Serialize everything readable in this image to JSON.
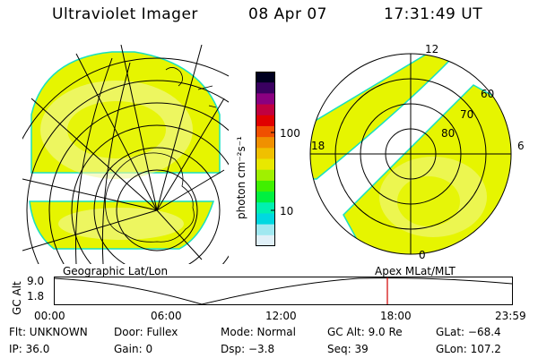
{
  "header": {
    "title": "Ultraviolet Imager",
    "date": "08 Apr 07",
    "time": "17:31:49 UT"
  },
  "colors": {
    "fill": "#e6f500",
    "fill_edge": "#18e0c0",
    "bright": "#f2f7a0",
    "grid": "#000000",
    "marker": "#d00000"
  },
  "left_panel": {
    "label": "Geographic Lat/Lon"
  },
  "right_panel": {
    "label": "Apex MLat/MLT",
    "mlt_labels": [
      "12",
      "18",
      "6",
      "0"
    ],
    "mlat_labels": [
      "60",
      "70",
      "80"
    ]
  },
  "colorbar": {
    "unit": "photon cm⁻²s⁻¹",
    "tick_labels": [
      "100",
      "10"
    ],
    "stops": [
      "#000020",
      "#3a0060",
      "#8a0080",
      "#c00040",
      "#e00000",
      "#f05000",
      "#f09000",
      "#f0c000",
      "#e8e800",
      "#a0f000",
      "#40f000",
      "#00f040",
      "#00f0b0",
      "#00d8e0",
      "#a0e8f0",
      "#e0f0f8"
    ]
  },
  "altitude_plot": {
    "ylabel": "GC Alt",
    "yticks": [
      "9.0",
      "1.8"
    ],
    "xticks": [
      "00:00",
      "06:00",
      "12:00",
      "18:00",
      "23:59"
    ]
  },
  "footer": {
    "flt": "Flt: UNKNOWN",
    "ip": "IP: 36.0",
    "door": "Door: Fullex",
    "gain": "Gain:  0",
    "mode": "Mode: Normal",
    "dsp": "Dsp:   −3.8",
    "gcalt": "GC Alt: 9.0 Re",
    "seq": "Seq: 39",
    "glat": "GLat: −68.4",
    "glon": "GLon: 107.2"
  }
}
